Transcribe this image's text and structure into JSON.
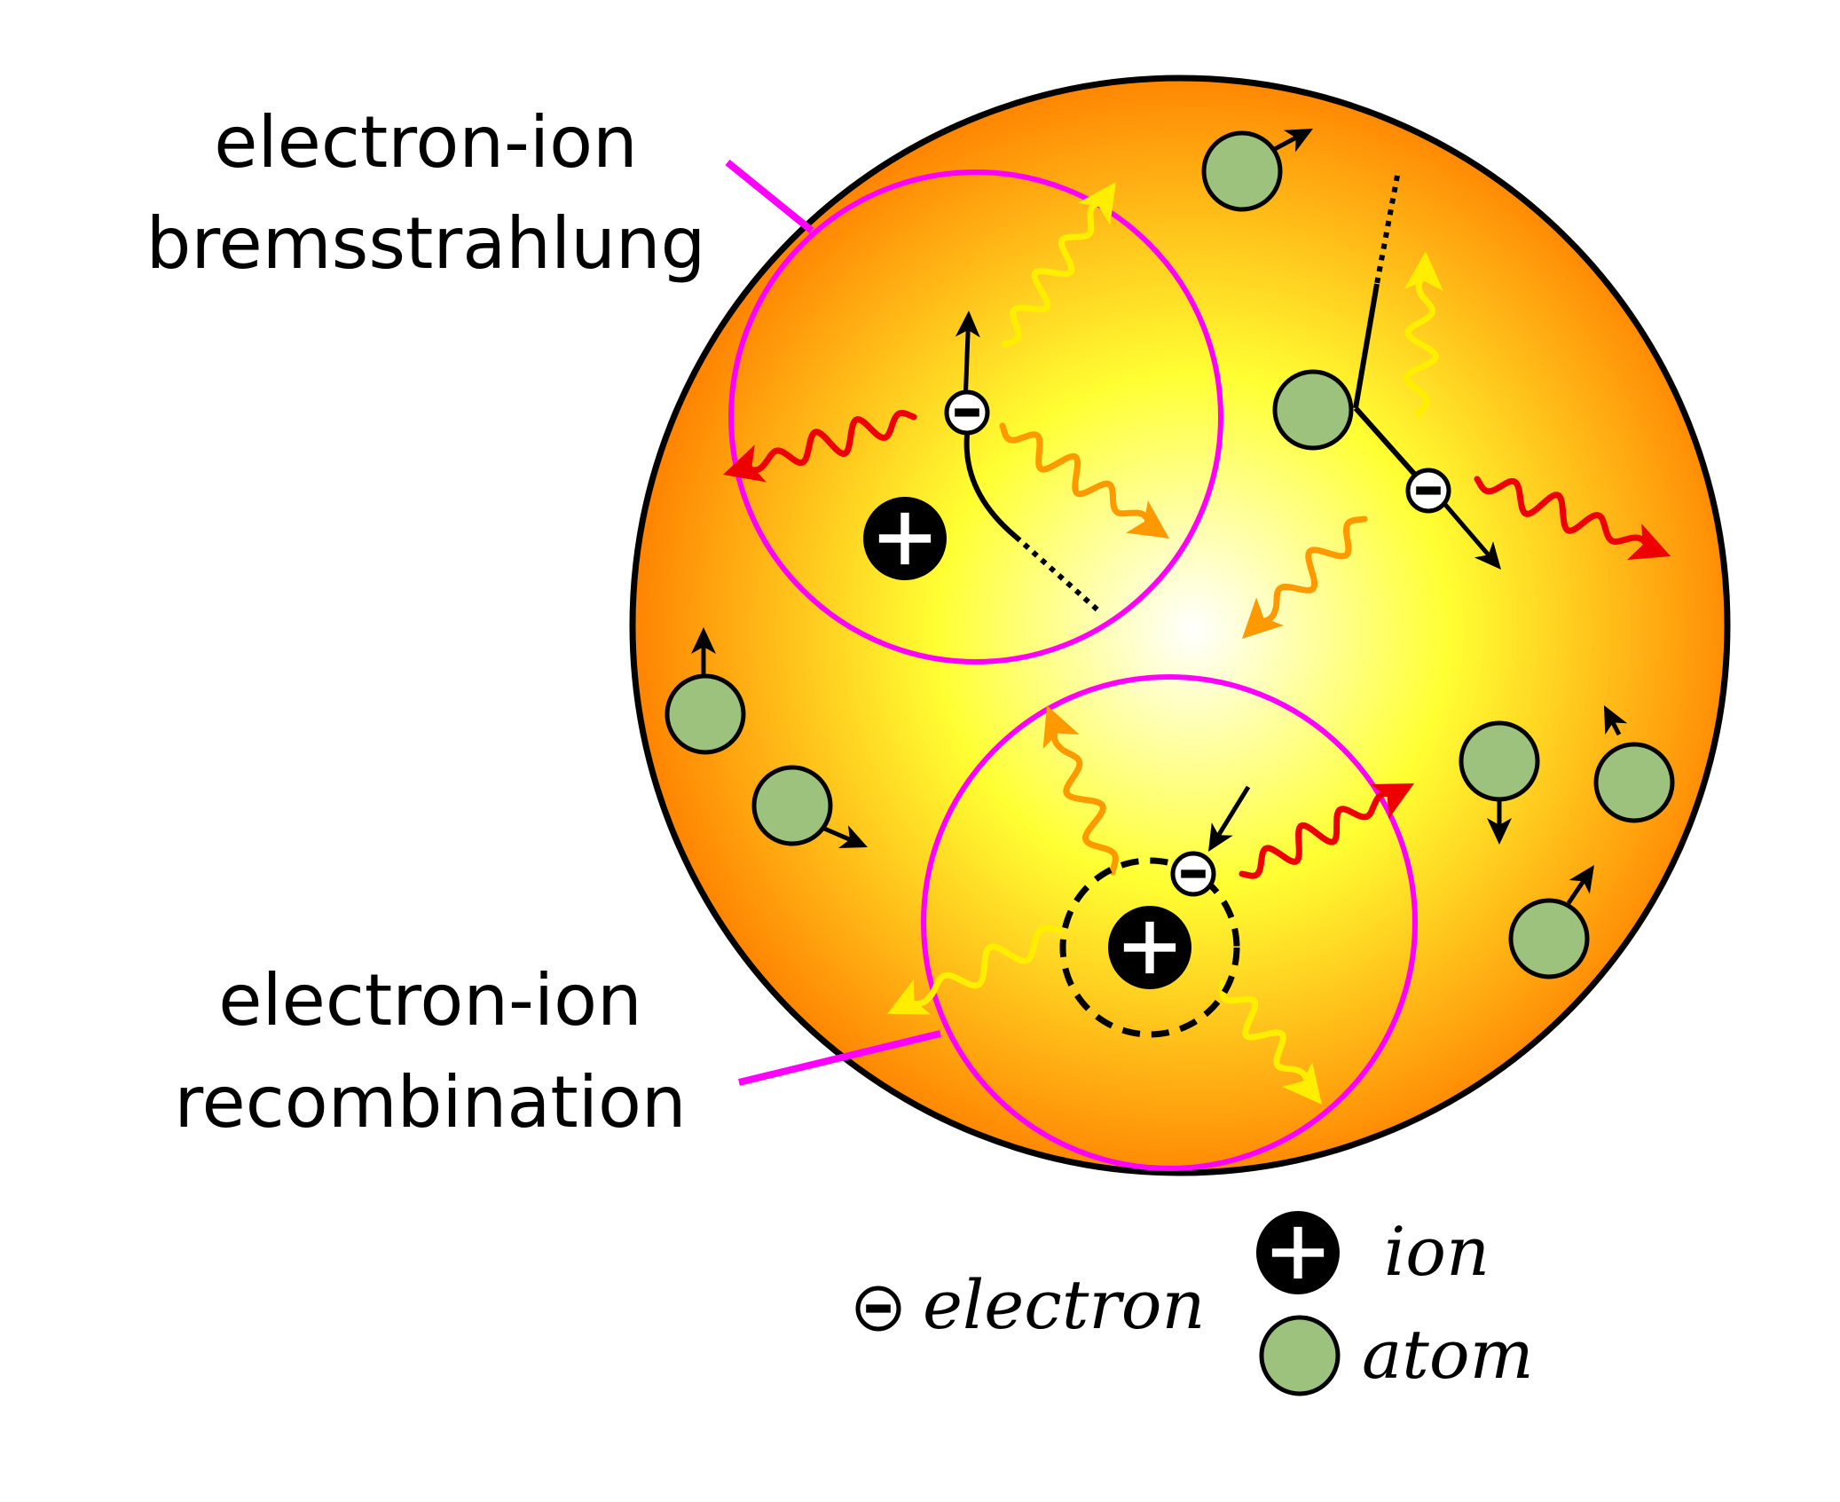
{
  "labels": {
    "bremsstrahlung_line1": "electron-ion",
    "bremsstrahlung_line2": "bremsstrahlung",
    "recombination_line1": "electron-ion",
    "recombination_line2": "recombination"
  },
  "legend": {
    "electron": "electron",
    "ion": "ion",
    "atom": "atom"
  },
  "colors": {
    "plasma_center": "#ffffff",
    "plasma_mid": "#ffff33",
    "plasma_edge": "#ff8000",
    "highlight": "#ff00ff",
    "atom": "#9dc27d",
    "photon_red": "#ee0000",
    "photon_orange": "#ff9900",
    "photon_yellow": "#ffee00"
  },
  "icons": [
    "electron-icon",
    "ion-icon",
    "atom-icon",
    "photon-wave-icon",
    "arrow-icon"
  ]
}
